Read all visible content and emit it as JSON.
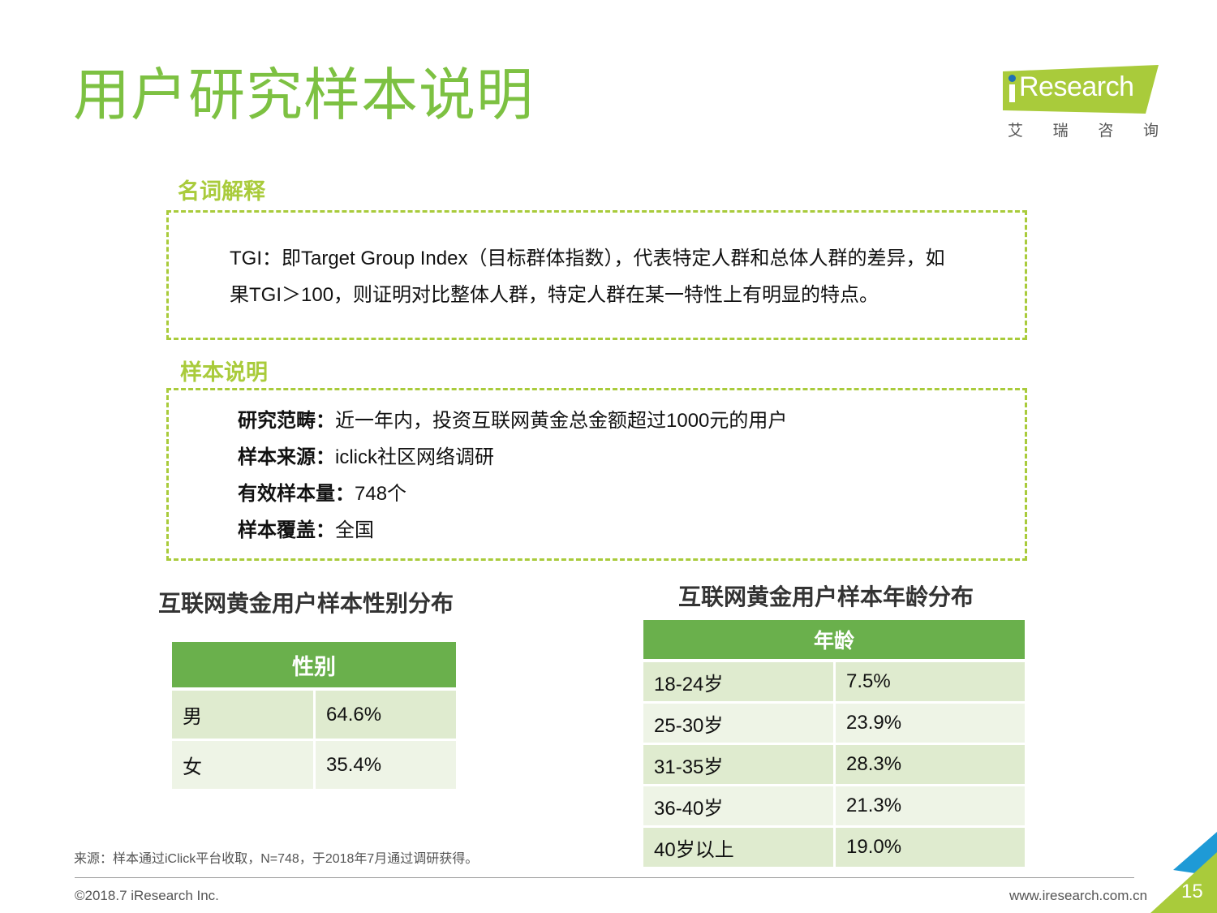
{
  "page": {
    "title": "用户研究样本说明",
    "logo": {
      "word": "Research",
      "cn": [
        "艾",
        "瑞",
        "咨",
        "询"
      ]
    }
  },
  "glossary": {
    "label": "名词解释",
    "text": "TGI：即Target Group Index（目标群体指数），代表特定人群和总体人群的差异，如果TGI＞100，则证明对比整体人群，特定人群在某一特性上有明显的特点。"
  },
  "sample": {
    "label": "样本说明",
    "items": [
      {
        "key": "研究范畴：",
        "value": "近一年内，投资互联网黄金总金额超过1000元的用户"
      },
      {
        "key": "样本来源：",
        "value": "iclick社区网络调研"
      },
      {
        "key": "有效样本量：",
        "value": "748个"
      },
      {
        "key": "样本覆盖：",
        "value": "全国"
      }
    ]
  },
  "gender_table": {
    "title": "互联网黄金用户样本性别分布",
    "header": "性别",
    "rows": [
      {
        "label": "男",
        "value": "64.6%"
      },
      {
        "label": "女",
        "value": "35.4%"
      }
    ]
  },
  "age_table": {
    "title": "互联网黄金用户样本年龄分布",
    "header": "年龄",
    "rows": [
      {
        "label": "18-24岁",
        "value": "7.5%"
      },
      {
        "label": "25-30岁",
        "value": "23.9%"
      },
      {
        "label": "31-35岁",
        "value": "28.3%"
      },
      {
        "label": "36-40岁",
        "value": "21.3%"
      },
      {
        "label": "40岁以上",
        "value": "19.0%"
      }
    ]
  },
  "footer": {
    "source": "来源：样本通过iClick平台收取，N=748，于2018年7月通过调研获得。",
    "copyright": "©2018.7 iResearch Inc.",
    "website": "www.iresearch.com.cn",
    "page_number": "15"
  },
  "colors": {
    "title_green": "#7dc142",
    "label_green": "#a9cb3b",
    "table_header": "#6ab04c",
    "row_dark": "#dfebcf",
    "row_light": "#eef4e6",
    "corner_blue": "#1e9ad6"
  }
}
